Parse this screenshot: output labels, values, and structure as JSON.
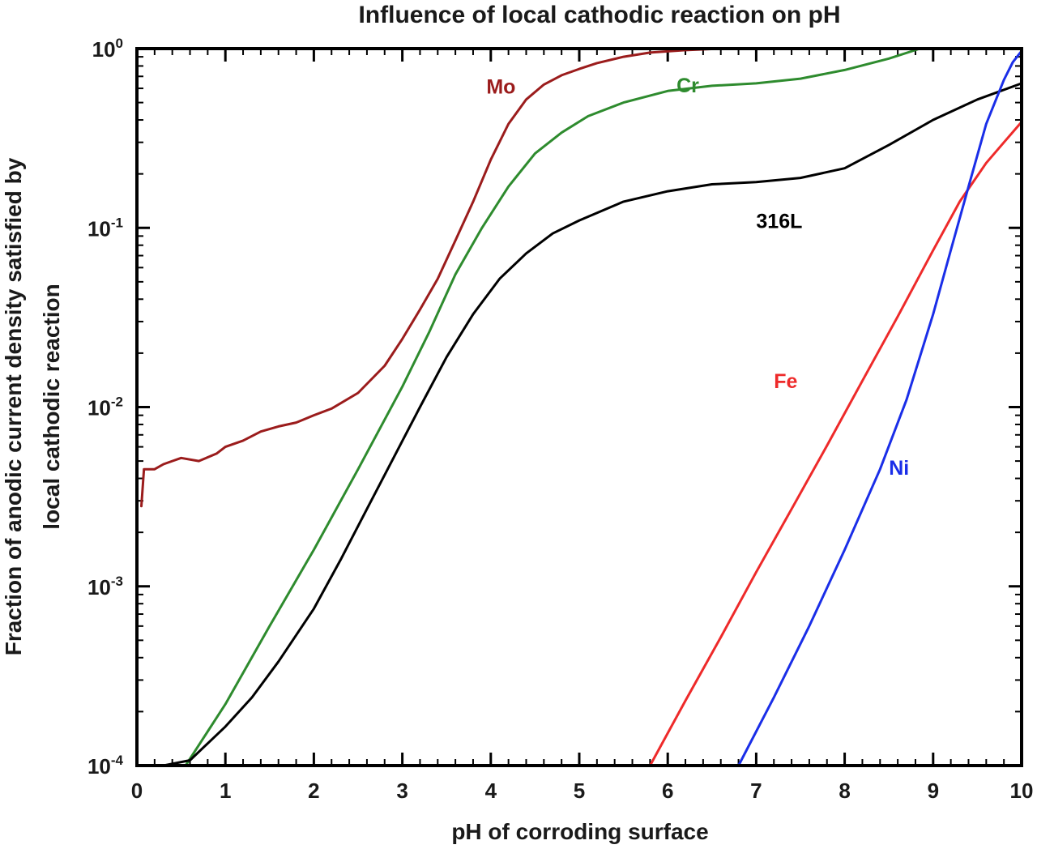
{
  "chart_data": {
    "type": "line",
    "title": "Influence of local cathodic reaction on pH",
    "xlabel": "pH of corroding surface",
    "ylabel_lines": [
      "Fraction of anodic current density satisfied by",
      "local cathodic reaction"
    ],
    "xscale": "linear",
    "yscale": "log",
    "xlim": [
      0,
      10
    ],
    "ylim": [
      0.0001,
      1
    ],
    "x_ticks": [
      0,
      1,
      2,
      3,
      4,
      5,
      6,
      7,
      8,
      9,
      10
    ],
    "y_ticks": [
      {
        "value": 0.0001,
        "base": "10",
        "exp": "-4"
      },
      {
        "value": 0.001,
        "base": "10",
        "exp": "-3"
      },
      {
        "value": 0.01,
        "base": "10",
        "exp": "-2"
      },
      {
        "value": 0.1,
        "base": "10",
        "exp": "-1"
      },
      {
        "value": 1,
        "base": "10",
        "exp": "0"
      }
    ],
    "grid": false,
    "series": [
      {
        "name": "Mo",
        "color": "#9b1c1c",
        "label_at": [
          3.95,
          0.56
        ],
        "points": [
          [
            0.05,
            0.0028
          ],
          [
            0.08,
            0.0045
          ],
          [
            0.2,
            0.0045
          ],
          [
            0.3,
            0.0048
          ],
          [
            0.4,
            0.005
          ],
          [
            0.5,
            0.0052
          ],
          [
            0.7,
            0.005
          ],
          [
            0.9,
            0.0055
          ],
          [
            1.0,
            0.006
          ],
          [
            1.2,
            0.0065
          ],
          [
            1.4,
            0.0073
          ],
          [
            1.6,
            0.0078
          ],
          [
            1.8,
            0.0082
          ],
          [
            2.0,
            0.009
          ],
          [
            2.2,
            0.0098
          ],
          [
            2.5,
            0.012
          ],
          [
            2.8,
            0.017
          ],
          [
            3.0,
            0.024
          ],
          [
            3.2,
            0.035
          ],
          [
            3.4,
            0.052
          ],
          [
            3.6,
            0.085
          ],
          [
            3.8,
            0.14
          ],
          [
            4.0,
            0.24
          ],
          [
            4.2,
            0.38
          ],
          [
            4.4,
            0.52
          ],
          [
            4.6,
            0.63
          ],
          [
            4.8,
            0.71
          ],
          [
            5.0,
            0.77
          ],
          [
            5.2,
            0.83
          ],
          [
            5.5,
            0.9
          ],
          [
            5.8,
            0.95
          ],
          [
            6.2,
            0.98
          ],
          [
            6.6,
            1.0
          ],
          [
            10.0,
            1.0
          ]
        ]
      },
      {
        "name": "Cr",
        "color": "#2e8b2e",
        "label_at": [
          6.1,
          0.57
        ],
        "points": [
          [
            0.55,
            0.0001
          ],
          [
            1.0,
            0.00022
          ],
          [
            1.5,
            0.0006
          ],
          [
            2.0,
            0.0016
          ],
          [
            2.5,
            0.0045
          ],
          [
            3.0,
            0.013
          ],
          [
            3.3,
            0.026
          ],
          [
            3.6,
            0.055
          ],
          [
            3.9,
            0.1
          ],
          [
            4.2,
            0.17
          ],
          [
            4.5,
            0.26
          ],
          [
            4.8,
            0.34
          ],
          [
            5.1,
            0.42
          ],
          [
            5.5,
            0.5
          ],
          [
            6.0,
            0.58
          ],
          [
            6.5,
            0.62
          ],
          [
            7.0,
            0.64
          ],
          [
            7.5,
            0.68
          ],
          [
            8.0,
            0.76
          ],
          [
            8.5,
            0.88
          ],
          [
            8.85,
            1.0
          ],
          [
            10.0,
            1.0
          ]
        ]
      },
      {
        "name": "316L",
        "color": "#000000",
        "label_at": [
          7.0,
          0.1
        ],
        "points": [
          [
            0.3,
            0.0001
          ],
          [
            0.6,
            0.000107
          ],
          [
            1.0,
            0.000165
          ],
          [
            1.3,
            0.00024
          ],
          [
            1.6,
            0.00038
          ],
          [
            2.0,
            0.00075
          ],
          [
            2.3,
            0.0014
          ],
          [
            2.6,
            0.0027
          ],
          [
            2.9,
            0.0052
          ],
          [
            3.2,
            0.01
          ],
          [
            3.5,
            0.019
          ],
          [
            3.8,
            0.033
          ],
          [
            4.1,
            0.052
          ],
          [
            4.4,
            0.072
          ],
          [
            4.7,
            0.093
          ],
          [
            5.0,
            0.11
          ],
          [
            5.5,
            0.14
          ],
          [
            6.0,
            0.16
          ],
          [
            6.5,
            0.175
          ],
          [
            7.0,
            0.18
          ],
          [
            7.5,
            0.19
          ],
          [
            8.0,
            0.215
          ],
          [
            8.5,
            0.29
          ],
          [
            9.0,
            0.4
          ],
          [
            9.5,
            0.52
          ],
          [
            10.0,
            0.64
          ]
        ]
      },
      {
        "name": "Fe",
        "color": "#ee2a2a",
        "label_at": [
          7.2,
          0.0128
        ],
        "points": [
          [
            5.8,
            0.0001
          ],
          [
            6.2,
            0.00023
          ],
          [
            6.6,
            0.00052
          ],
          [
            7.0,
            0.0012
          ],
          [
            7.4,
            0.0027
          ],
          [
            7.8,
            0.0061
          ],
          [
            8.2,
            0.014
          ],
          [
            8.6,
            0.032
          ],
          [
            9.0,
            0.075
          ],
          [
            9.3,
            0.14
          ],
          [
            9.6,
            0.23
          ],
          [
            9.8,
            0.3
          ],
          [
            10.0,
            0.39
          ]
        ]
      },
      {
        "name": "Ni",
        "color": "#1a2ee8",
        "label_at": [
          8.5,
          0.0042
        ],
        "points": [
          [
            6.8,
            0.0001
          ],
          [
            7.2,
            0.00024
          ],
          [
            7.6,
            0.0006
          ],
          [
            8.0,
            0.0016
          ],
          [
            8.4,
            0.0045
          ],
          [
            8.7,
            0.011
          ],
          [
            9.0,
            0.033
          ],
          [
            9.2,
            0.075
          ],
          [
            9.4,
            0.17
          ],
          [
            9.6,
            0.38
          ],
          [
            9.8,
            0.67
          ],
          [
            9.9,
            0.84
          ],
          [
            10.0,
            0.97
          ]
        ]
      }
    ]
  }
}
